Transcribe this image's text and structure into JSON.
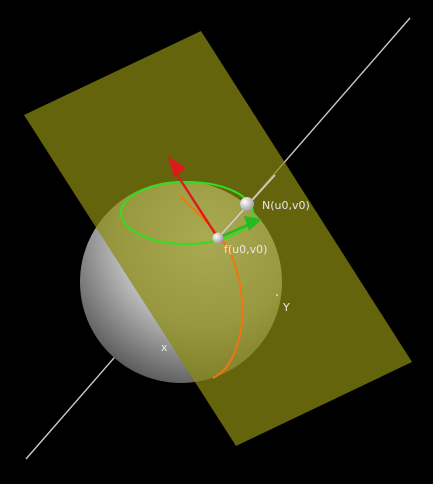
{
  "labels": {
    "normal": "N(u0,v0)",
    "point": "f(u0,v0)",
    "axis_y": "Y",
    "axis_x": "x"
  },
  "colors": {
    "background": "#000000",
    "plane": "#8a8a10",
    "sphere_light": "#f4f4f4",
    "sphere_dark": "#5a5a5a",
    "normal_line": "#c8c8c8",
    "u_curve": "#ee7711",
    "v_curve": "#33dd22",
    "arrow_u": "#dd1a1a",
    "arrow_v": "#22bb22",
    "label_text": "#e8e8e8"
  }
}
